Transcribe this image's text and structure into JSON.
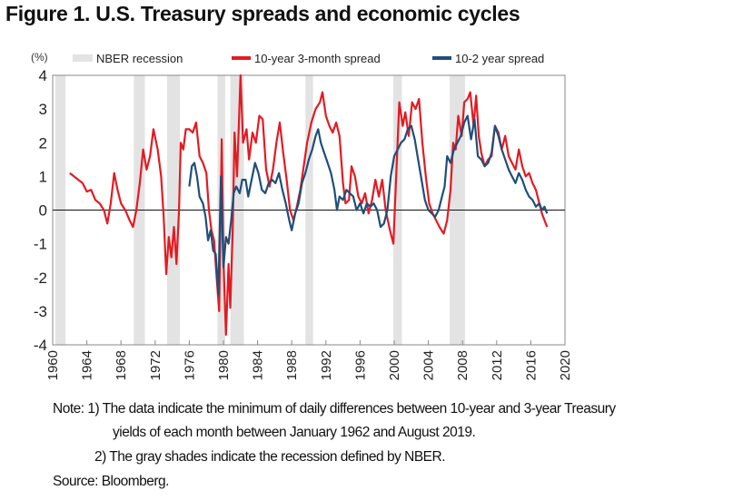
{
  "title": "Figure 1. U.S. Treasury spreads and economic cycles",
  "notes": [
    "Note: 1) The data indicate the minimum of daily differences between 10-year and 3-year Treasury",
    "yields of each month between January 1962 and August 2019.",
    "2) The gray shades indicate the recession defined by NBER.",
    "Source: Bloomberg."
  ],
  "chart_data": {
    "type": "line",
    "title": "",
    "ylabel": "(%)",
    "xlabel": "",
    "xlim": [
      1960,
      2020
    ],
    "ylim": [
      -4,
      4
    ],
    "xticks": [
      1960,
      1964,
      1968,
      1972,
      1976,
      1980,
      1984,
      1988,
      1992,
      1996,
      2000,
      2004,
      2008,
      2012,
      2016,
      2020
    ],
    "yticks": [
      -4,
      -3,
      -2,
      -1,
      0,
      1,
      2,
      3,
      4
    ],
    "grid": false,
    "legend_placement": "top",
    "recession_label": "NBER recession",
    "recession_color": "#e3e3e3",
    "recessions": [
      [
        1960.3,
        1961.5
      ],
      [
        1969.5,
        1970.8
      ],
      [
        1973.4,
        1974.9
      ],
      [
        1979.3,
        1980.2
      ],
      [
        1980.8,
        1982.4
      ],
      [
        1989.6,
        1990.5
      ],
      [
        1999.9,
        2000.9
      ],
      [
        2006.5,
        2008.3
      ]
    ],
    "series": [
      {
        "name": "10-year 3-month spread",
        "color": "#e31b23",
        "x": [
          1962,
          1962.5,
          1963,
          1963.5,
          1964,
          1964.5,
          1965,
          1965.5,
          1966,
          1966.4,
          1966.8,
          1967.2,
          1967.6,
          1968,
          1968.5,
          1969,
          1969.4,
          1969.8,
          1970.2,
          1970.6,
          1971,
          1971.4,
          1971.8,
          1972.3,
          1972.7,
          1973,
          1973.3,
          1973.6,
          1973.9,
          1974.2,
          1974.5,
          1974.8,
          1975,
          1975.3,
          1975.6,
          1976,
          1976.4,
          1976.8,
          1977.2,
          1977.6,
          1978,
          1978.3,
          1978.6,
          1978.9,
          1979.2,
          1979.5,
          1979.8,
          1980,
          1980.3,
          1980.6,
          1980.8,
          1981.1,
          1981.3,
          1981.6,
          1982,
          1982.3,
          1982.7,
          1983,
          1983.4,
          1983.8,
          1984.2,
          1984.6,
          1985,
          1985.4,
          1985.8,
          1986.2,
          1986.6,
          1987,
          1987.4,
          1987.8,
          1988.2,
          1988.6,
          1989,
          1989.4,
          1989.8,
          1990.3,
          1990.8,
          1991.3,
          1991.6,
          1992,
          1992.4,
          1992.8,
          1993.2,
          1993.6,
          1994,
          1994.3,
          1994.7,
          1995,
          1995.4,
          1995.8,
          1996.2,
          1996.6,
          1997,
          1997.4,
          1997.8,
          1998.2,
          1998.6,
          1999,
          1999.5,
          1999.9,
          2000.3,
          2000.6,
          2001,
          2001.3,
          2001.7,
          2002.1,
          2002.5,
          2002.9,
          2003.3,
          2003.7,
          2004.1,
          2004.5,
          2004.9,
          2005.3,
          2005.8,
          2006.2,
          2006.6,
          2006.9,
          2007.2,
          2007.5,
          2007.9,
          2008.2,
          2008.6,
          2008.9,
          2009.3,
          2009.6,
          2009.9,
          2010.2,
          2010.6,
          2011,
          2011.4,
          2011.8,
          2012.2,
          2012.6,
          2013,
          2013.4,
          2013.8,
          2014.2,
          2014.6,
          2015,
          2015.4,
          2015.8,
          2016.2,
          2016.6,
          2017,
          2017.3,
          2017.6,
          2017.9
        ],
        "y": [
          1.1,
          1.0,
          0.9,
          0.8,
          0.55,
          0.6,
          0.3,
          0.2,
          0.0,
          -0.4,
          0.2,
          1.1,
          0.6,
          0.2,
          0.0,
          -0.3,
          -0.5,
          0.0,
          0.8,
          1.8,
          1.2,
          1.6,
          2.4,
          1.8,
          1.0,
          -0.2,
          -1.9,
          -0.8,
          -1.4,
          -0.5,
          -1.6,
          0.0,
          2.0,
          1.8,
          2.4,
          2.4,
          2.3,
          2.6,
          1.6,
          1.4,
          1.1,
          0.0,
          -0.6,
          -0.9,
          -2.0,
          -3.0,
          2.1,
          -1.5,
          -3.7,
          -1.6,
          -2.9,
          -0.5,
          2.3,
          1.0,
          4.0,
          2.0,
          2.4,
          1.5,
          2.3,
          2.0,
          2.8,
          2.7,
          1.2,
          0.7,
          1.2,
          2.0,
          2.6,
          1.7,
          0.9,
          0.0,
          -0.3,
          0.1,
          0.6,
          1.3,
          2.0,
          2.6,
          3.0,
          3.2,
          3.5,
          2.8,
          2.5,
          2.3,
          2.6,
          2.2,
          0.8,
          0.2,
          0.3,
          1.3,
          1.0,
          0.4,
          0.2,
          0.5,
          -0.1,
          0.3,
          0.9,
          0.4,
          0.9,
          0.0,
          -0.6,
          -1.0,
          1.4,
          3.2,
          2.5,
          2.9,
          2.2,
          3.2,
          3.0,
          3.3,
          2.0,
          1.0,
          0.2,
          -0.1,
          -0.3,
          -0.5,
          -0.7,
          -0.3,
          0.6,
          2.0,
          1.8,
          2.8,
          2.2,
          3.2,
          3.3,
          3.5,
          2.5,
          3.4,
          2.2,
          1.7,
          1.3,
          1.5,
          1.6,
          2.5,
          2.3,
          1.8,
          2.2,
          1.6,
          1.4,
          1.2,
          1.8,
          1.3,
          1.0,
          1.1,
          0.8,
          0.6,
          0.2,
          -0.1,
          -0.3,
          -0.5
        ]
      },
      {
        "name": "10-2 year spread",
        "color": "#1f4e79",
        "x": [
          1976,
          1976.3,
          1976.6,
          1976.9,
          1977.2,
          1977.6,
          1977.9,
          1978.2,
          1978.5,
          1978.8,
          1979.1,
          1979.4,
          1979.7,
          1980,
          1980.3,
          1980.6,
          1980.9,
          1981.2,
          1981.5,
          1981.9,
          1982.2,
          1982.6,
          1982.9,
          1983.3,
          1983.7,
          1984.1,
          1984.5,
          1984.9,
          1985.3,
          1985.7,
          1986.1,
          1986.5,
          1986.9,
          1987.3,
          1987.7,
          1988,
          1988.4,
          1988.8,
          1989.2,
          1989.6,
          1990,
          1990.4,
          1990.8,
          1991.1,
          1991.4,
          1991.8,
          1992.2,
          1992.6,
          1993,
          1993.3,
          1993.6,
          1994,
          1994.4,
          1994.8,
          1995.2,
          1995.6,
          1996,
          1996.4,
          1996.8,
          1997.2,
          1997.6,
          1998,
          1998.4,
          1998.8,
          1999.2,
          1999.6,
          2000,
          2000.4,
          2000.8,
          2001.2,
          2001.6,
          2002,
          2002.4,
          2002.8,
          2003.2,
          2003.6,
          2004,
          2004.4,
          2004.8,
          2005.2,
          2005.6,
          2005.9,
          2006.2,
          2006.6,
          2007,
          2007.4,
          2007.8,
          2008.2,
          2008.6,
          2009,
          2009.4,
          2009.8,
          2010.2,
          2010.6,
          2011,
          2011.4,
          2011.8,
          2012.2,
          2012.6,
          2013,
          2013.4,
          2013.8,
          2014.2,
          2014.6,
          2015,
          2015.4,
          2015.8,
          2016.2,
          2016.6,
          2017,
          2017.3,
          2017.6,
          2017.9
        ],
        "y": [
          0.7,
          1.3,
          1.4,
          1.0,
          0.4,
          0.2,
          -0.2,
          -0.9,
          -0.6,
          -1.2,
          -1.3,
          -2.5,
          1.0,
          -1.7,
          -0.8,
          -1.0,
          -0.3,
          0.5,
          0.7,
          0.5,
          0.9,
          0.9,
          0.4,
          0.9,
          1.4,
          1.1,
          0.6,
          0.5,
          0.8,
          0.9,
          0.8,
          1.1,
          0.6,
          0.2,
          -0.3,
          -0.6,
          -0.1,
          0.2,
          0.8,
          1.1,
          1.5,
          1.8,
          2.2,
          2.4,
          2.0,
          1.7,
          1.4,
          1.1,
          0.6,
          0.0,
          0.4,
          0.3,
          0.6,
          0.5,
          0.4,
          0.0,
          0.2,
          -0.1,
          0.2,
          0.1,
          0.2,
          0.0,
          -0.5,
          -0.4,
          0.0,
          1.0,
          1.6,
          1.8,
          2.0,
          2.1,
          2.4,
          2.5,
          2.1,
          1.5,
          0.9,
          0.3,
          0.0,
          -0.1,
          -0.2,
          0.0,
          0.4,
          0.7,
          1.6,
          1.4,
          1.8,
          2.0,
          2.2,
          2.6,
          2.8,
          2.1,
          2.7,
          1.6,
          1.5,
          1.3,
          1.4,
          1.7,
          2.5,
          2.2,
          1.8,
          1.5,
          1.2,
          1.0,
          0.8,
          1.1,
          0.9,
          0.6,
          0.4,
          0.3,
          0.1,
          0.2,
          0.0,
          0.1,
          -0.1
        ]
      }
    ]
  }
}
